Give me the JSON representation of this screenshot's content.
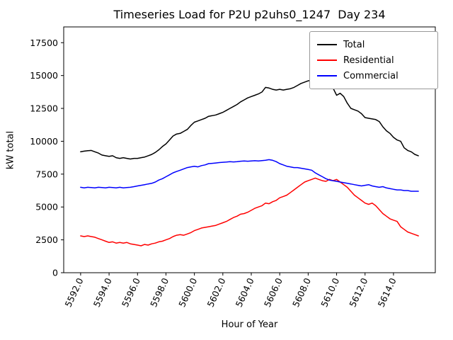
{
  "chart_data": {
    "type": "line",
    "title": "Timeseries Load for P2U p2uhs0_1247  Day 234",
    "xlabel": "Hour of Year",
    "ylabel": "kW total",
    "xlim": [
      5590.81,
      5616.94
    ],
    "ylim": [
      0,
      18700
    ],
    "yticks": [
      0,
      2500,
      5000,
      7500,
      10000,
      12500,
      15000,
      17500
    ],
    "xticks": [
      5592,
      5594,
      5596,
      5598,
      5600,
      5602,
      5604,
      5606,
      5608,
      5610,
      5612,
      5614
    ],
    "xtick_labels": [
      "5592.0",
      "5594.0",
      "5596.0",
      "5598.0",
      "5600.0",
      "5602.0",
      "5604.0",
      "5606.0",
      "5608.0",
      "5610.0",
      "5612.0",
      "5614.0"
    ],
    "grid": false,
    "legend_position": "upper right",
    "x_start": 5592.0,
    "x_step": 0.25,
    "series": [
      {
        "name": "Total",
        "color": "#000000",
        "values": [
          9200,
          9250,
          9280,
          9300,
          9200,
          9100,
          8950,
          8900,
          8850,
          8900,
          8750,
          8700,
          8750,
          8700,
          8650,
          8700,
          8700,
          8750,
          8800,
          8900,
          9000,
          9150,
          9350,
          9600,
          9800,
          10100,
          10400,
          10550,
          10600,
          10750,
          10900,
          11200,
          11450,
          11550,
          11650,
          11750,
          11900,
          11950,
          12000,
          12100,
          12200,
          12350,
          12500,
          12650,
          12800,
          13000,
          13150,
          13300,
          13400,
          13500,
          13600,
          13750,
          14100,
          14050,
          13950,
          13900,
          13950,
          13900,
          13950,
          14000,
          14100,
          14250,
          14400,
          14500,
          14600,
          14650,
          14750,
          14600,
          14200,
          14100,
          14200,
          14050,
          13500,
          13650,
          13400,
          12900,
          12500,
          12400,
          12300,
          12100,
          11800,
          11750,
          11700,
          11650,
          11500,
          11100,
          10800,
          10600,
          10300,
          10100,
          10000,
          9500,
          9300,
          9200,
          9000,
          8900
        ]
      },
      {
        "name": "Residential",
        "color": "#ff0000",
        "values": [
          2800,
          2750,
          2800,
          2750,
          2700,
          2600,
          2500,
          2400,
          2300,
          2350,
          2250,
          2300,
          2250,
          2300,
          2200,
          2150,
          2100,
          2050,
          2150,
          2100,
          2200,
          2250,
          2350,
          2400,
          2500,
          2600,
          2750,
          2850,
          2900,
          2850,
          2950,
          3050,
          3200,
          3300,
          3400,
          3450,
          3500,
          3550,
          3600,
          3700,
          3800,
          3900,
          4050,
          4200,
          4300,
          4450,
          4500,
          4600,
          4750,
          4900,
          5000,
          5100,
          5300,
          5250,
          5400,
          5500,
          5700,
          5800,
          5900,
          6100,
          6300,
          6500,
          6700,
          6900,
          7000,
          7100,
          7200,
          7100,
          7000,
          6950,
          7100,
          7000,
          7100,
          6900,
          6700,
          6500,
          6200,
          5900,
          5700,
          5500,
          5300,
          5200,
          5300,
          5100,
          4800,
          4500,
          4300,
          4100,
          4000,
          3900,
          3500,
          3300,
          3100,
          3000,
          2900,
          2800
        ]
      },
      {
        "name": "Commercial",
        "color": "#0000ff",
        "values": [
          6500,
          6450,
          6500,
          6480,
          6450,
          6500,
          6480,
          6450,
          6500,
          6480,
          6450,
          6500,
          6450,
          6480,
          6500,
          6550,
          6600,
          6650,
          6700,
          6750,
          6800,
          6900,
          7050,
          7150,
          7300,
          7450,
          7600,
          7700,
          7800,
          7900,
          8000,
          8050,
          8100,
          8050,
          8150,
          8200,
          8300,
          8320,
          8350,
          8380,
          8400,
          8420,
          8450,
          8430,
          8450,
          8480,
          8500,
          8480,
          8500,
          8520,
          8500,
          8530,
          8550,
          8600,
          8550,
          8450,
          8300,
          8200,
          8100,
          8050,
          8000,
          8000,
          7950,
          7900,
          7850,
          7800,
          7600,
          7450,
          7300,
          7150,
          7050,
          7000,
          6950,
          6900,
          6850,
          6800,
          6750,
          6700,
          6650,
          6600,
          6650,
          6700,
          6600,
          6550,
          6500,
          6550,
          6450,
          6400,
          6350,
          6300,
          6300,
          6250,
          6250,
          6200,
          6200,
          6200
        ]
      }
    ]
  }
}
